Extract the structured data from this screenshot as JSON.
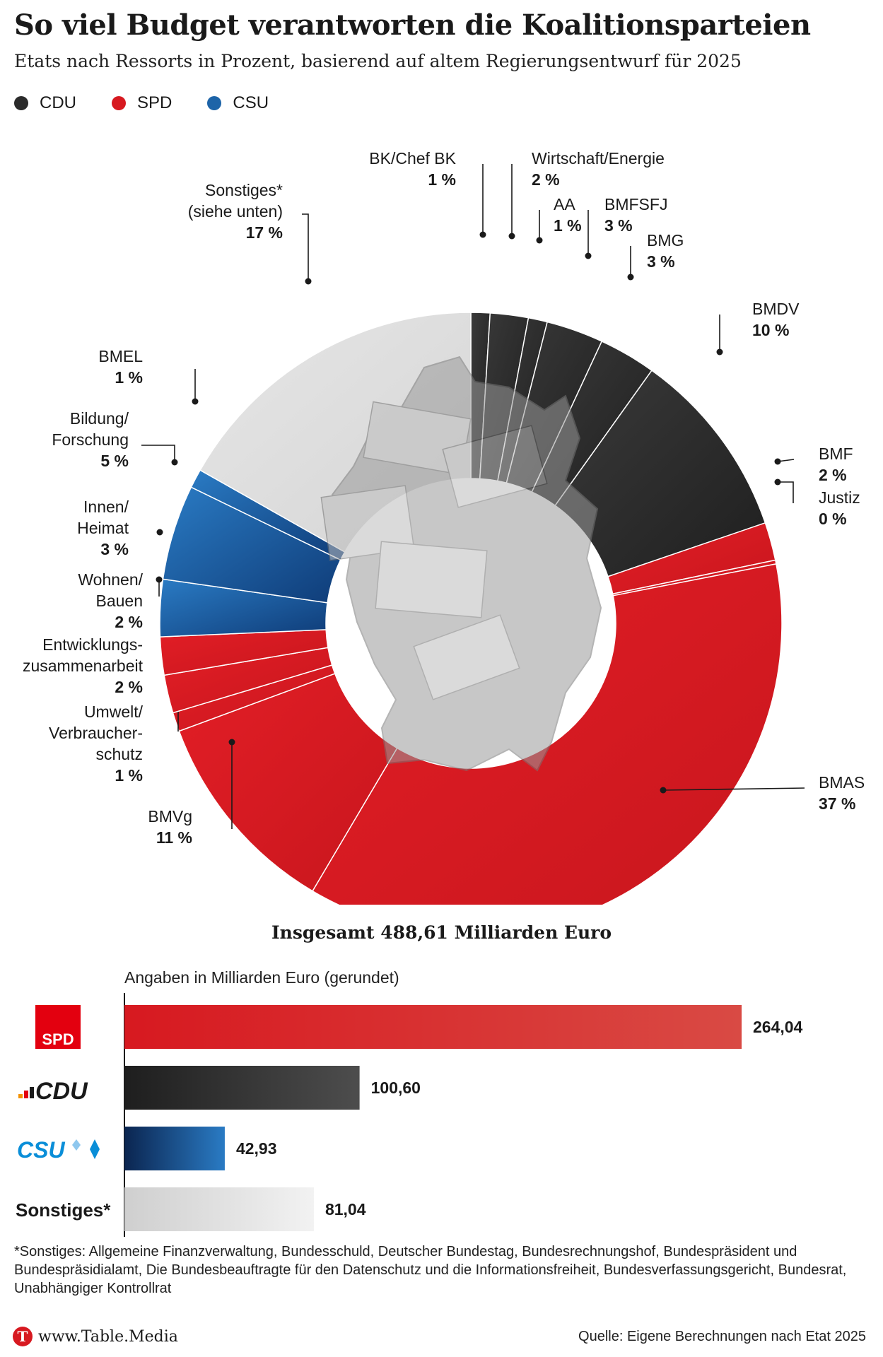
{
  "header": {
    "title": "So viel Budget verantworten die Koalitionsparteien",
    "subtitle": "Etats nach Ressorts in Prozent, basierend auf altem Regierungsentwurf für 2025"
  },
  "legend": [
    {
      "label": "CDU",
      "color": "#2b2b2b"
    },
    {
      "label": "SPD",
      "color": "#d71920"
    },
    {
      "label": "CSU",
      "color": "#1d64a8"
    }
  ],
  "chart_data": [
    {
      "type": "pie",
      "variant": "donut",
      "title": "So viel Budget verantworten die Koalitionsparteien",
      "subtitle": "Etats nach Ressorts in Prozent, basierend auf altem Regierungsentwurf für 2025",
      "legend_placement": "top-left",
      "slices": [
        {
          "label": "BK/Chef BK",
          "value_label": "1 %",
          "value": 1,
          "party": "CDU"
        },
        {
          "label": "Wirtschaft/Energie",
          "value_label": "2 %",
          "value": 2,
          "party": "CDU"
        },
        {
          "label": "AA",
          "value_label": "1 %",
          "value": 1,
          "party": "CDU"
        },
        {
          "label": "BMFSFJ",
          "value_label": "3 %",
          "value": 3,
          "party": "CDU"
        },
        {
          "label": "BMG",
          "value_label": "3 %",
          "value": 3,
          "party": "CDU"
        },
        {
          "label": "BMDV",
          "value_label": "10 %",
          "value": 10,
          "party": "CDU"
        },
        {
          "label": "BMF",
          "value_label": "2 %",
          "value": 2,
          "party": "SPD"
        },
        {
          "label": "Justiz",
          "value_label": "0 %",
          "value": 0.2,
          "party": "SPD"
        },
        {
          "label": "BMAS",
          "value_label": "37 %",
          "value": 37,
          "party": "SPD"
        },
        {
          "label": "BMVg",
          "value_label": "11 %",
          "value": 11,
          "party": "SPD"
        },
        {
          "label": "Umwelt/\nVerbraucher-\nschutz",
          "value_label": "1 %",
          "value": 1,
          "party": "SPD"
        },
        {
          "label": "Entwicklungs-\nzusammenarbeit",
          "value_label": "2 %",
          "value": 2,
          "party": "SPD"
        },
        {
          "label": "Wohnen/\nBauen",
          "value_label": "2 %",
          "value": 2,
          "party": "SPD"
        },
        {
          "label": "Innen/\nHeimat",
          "value_label": "3 %",
          "value": 3,
          "party": "CSU"
        },
        {
          "label": "Bildung/\nForschung",
          "value_label": "5 %",
          "value": 5,
          "party": "CSU"
        },
        {
          "label": "BMEL",
          "value_label": "1 %",
          "value": 1,
          "party": "CSU"
        },
        {
          "label": "Sonstiges*\n(siehe unten)",
          "value_label": "17 %",
          "value": 17,
          "party": "Sonstiges"
        }
      ]
    },
    {
      "type": "bar",
      "orientation": "horizontal",
      "title": "Insgesamt 488,61 Milliarden Euro",
      "note": "Angaben in Milliarden Euro (gerundet)",
      "categories": [
        "SPD",
        "CDU",
        "CSU",
        "Sonstiges*"
      ],
      "values": [
        264.04,
        100.6,
        42.93,
        81.04
      ],
      "value_labels": [
        "264,04",
        "100,60",
        "42,93",
        "81,04"
      ]
    }
  ],
  "party_colors": {
    "CDU": "#2b2b2b",
    "SPD": "#d71920",
    "CSU": "#1d64a8",
    "Sonstiges": "#dedede"
  },
  "party_logos": {
    "SPD": "SPD",
    "CDU": "CDU",
    "CSU": "CSU"
  },
  "footnote": "*Sonstiges: Allgemeine Finanzverwaltung, Bundesschuld, Deutscher Bundestag, Bundesrechnungshof, Bundespräsident und Bundespräsidialamt, Die Bundesbeauftragte für den Datenschutz und die Informationsfreiheit, Bundesverfassungsgericht, Bundesrat, Unabhängiger Kontrollrat",
  "footer": {
    "logo_letter": "T",
    "site": "www.Table.Media",
    "source": "Quelle: Eigene Berechnungen nach Etat 2025"
  }
}
